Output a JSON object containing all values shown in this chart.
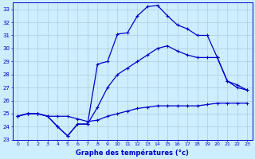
{
  "xlabel": "Graphe des températures (°c)",
  "background_color": "#cceeff",
  "grid_color": "#aaccdd",
  "line_color": "#0000cc",
  "ylim": [
    23,
    33.5
  ],
  "xlim": [
    -0.5,
    23.5
  ],
  "yticks": [
    23,
    24,
    25,
    26,
    27,
    28,
    29,
    30,
    31,
    32,
    33
  ],
  "xticks": [
    0,
    1,
    2,
    3,
    4,
    5,
    6,
    7,
    8,
    9,
    10,
    11,
    12,
    13,
    14,
    15,
    16,
    17,
    18,
    19,
    20,
    21,
    22,
    23
  ],
  "line1_x": [
    0,
    1,
    2,
    3,
    4,
    5,
    6,
    7,
    8,
    9,
    10,
    11,
    12,
    13,
    14,
    15,
    16,
    17,
    18,
    19,
    20,
    21,
    22,
    23
  ],
  "line1_y": [
    24.8,
    25.0,
    25.0,
    24.8,
    24.8,
    24.8,
    24.6,
    24.4,
    24.5,
    24.8,
    25.0,
    25.2,
    25.4,
    25.5,
    25.6,
    25.6,
    25.6,
    25.6,
    25.6,
    25.7,
    25.8,
    25.8,
    25.8,
    25.8
  ],
  "line2_x": [
    0,
    1,
    2,
    3,
    4,
    5,
    6,
    7,
    8,
    9,
    10,
    11,
    12,
    13,
    14,
    15,
    16,
    17,
    18,
    19,
    20,
    21,
    22,
    23
  ],
  "line2_y": [
    24.8,
    25.0,
    25.0,
    24.8,
    24.0,
    23.3,
    24.2,
    24.2,
    25.5,
    27.0,
    28.0,
    28.5,
    29.0,
    29.5,
    30.0,
    30.2,
    29.8,
    29.5,
    29.3,
    29.3,
    29.3,
    27.5,
    27.0,
    26.8
  ],
  "line3_x": [
    0,
    1,
    2,
    3,
    4,
    5,
    6,
    7,
    8,
    9,
    10,
    11,
    12,
    13,
    14,
    15,
    16,
    17,
    18,
    19,
    20,
    21,
    22,
    23
  ],
  "line3_y": [
    24.8,
    25.0,
    25.0,
    24.8,
    24.0,
    23.3,
    24.2,
    24.2,
    28.8,
    29.0,
    31.1,
    31.2,
    32.5,
    33.2,
    33.3,
    32.5,
    31.8,
    31.5,
    31.0,
    31.0,
    29.3,
    27.5,
    27.2,
    26.8
  ]
}
